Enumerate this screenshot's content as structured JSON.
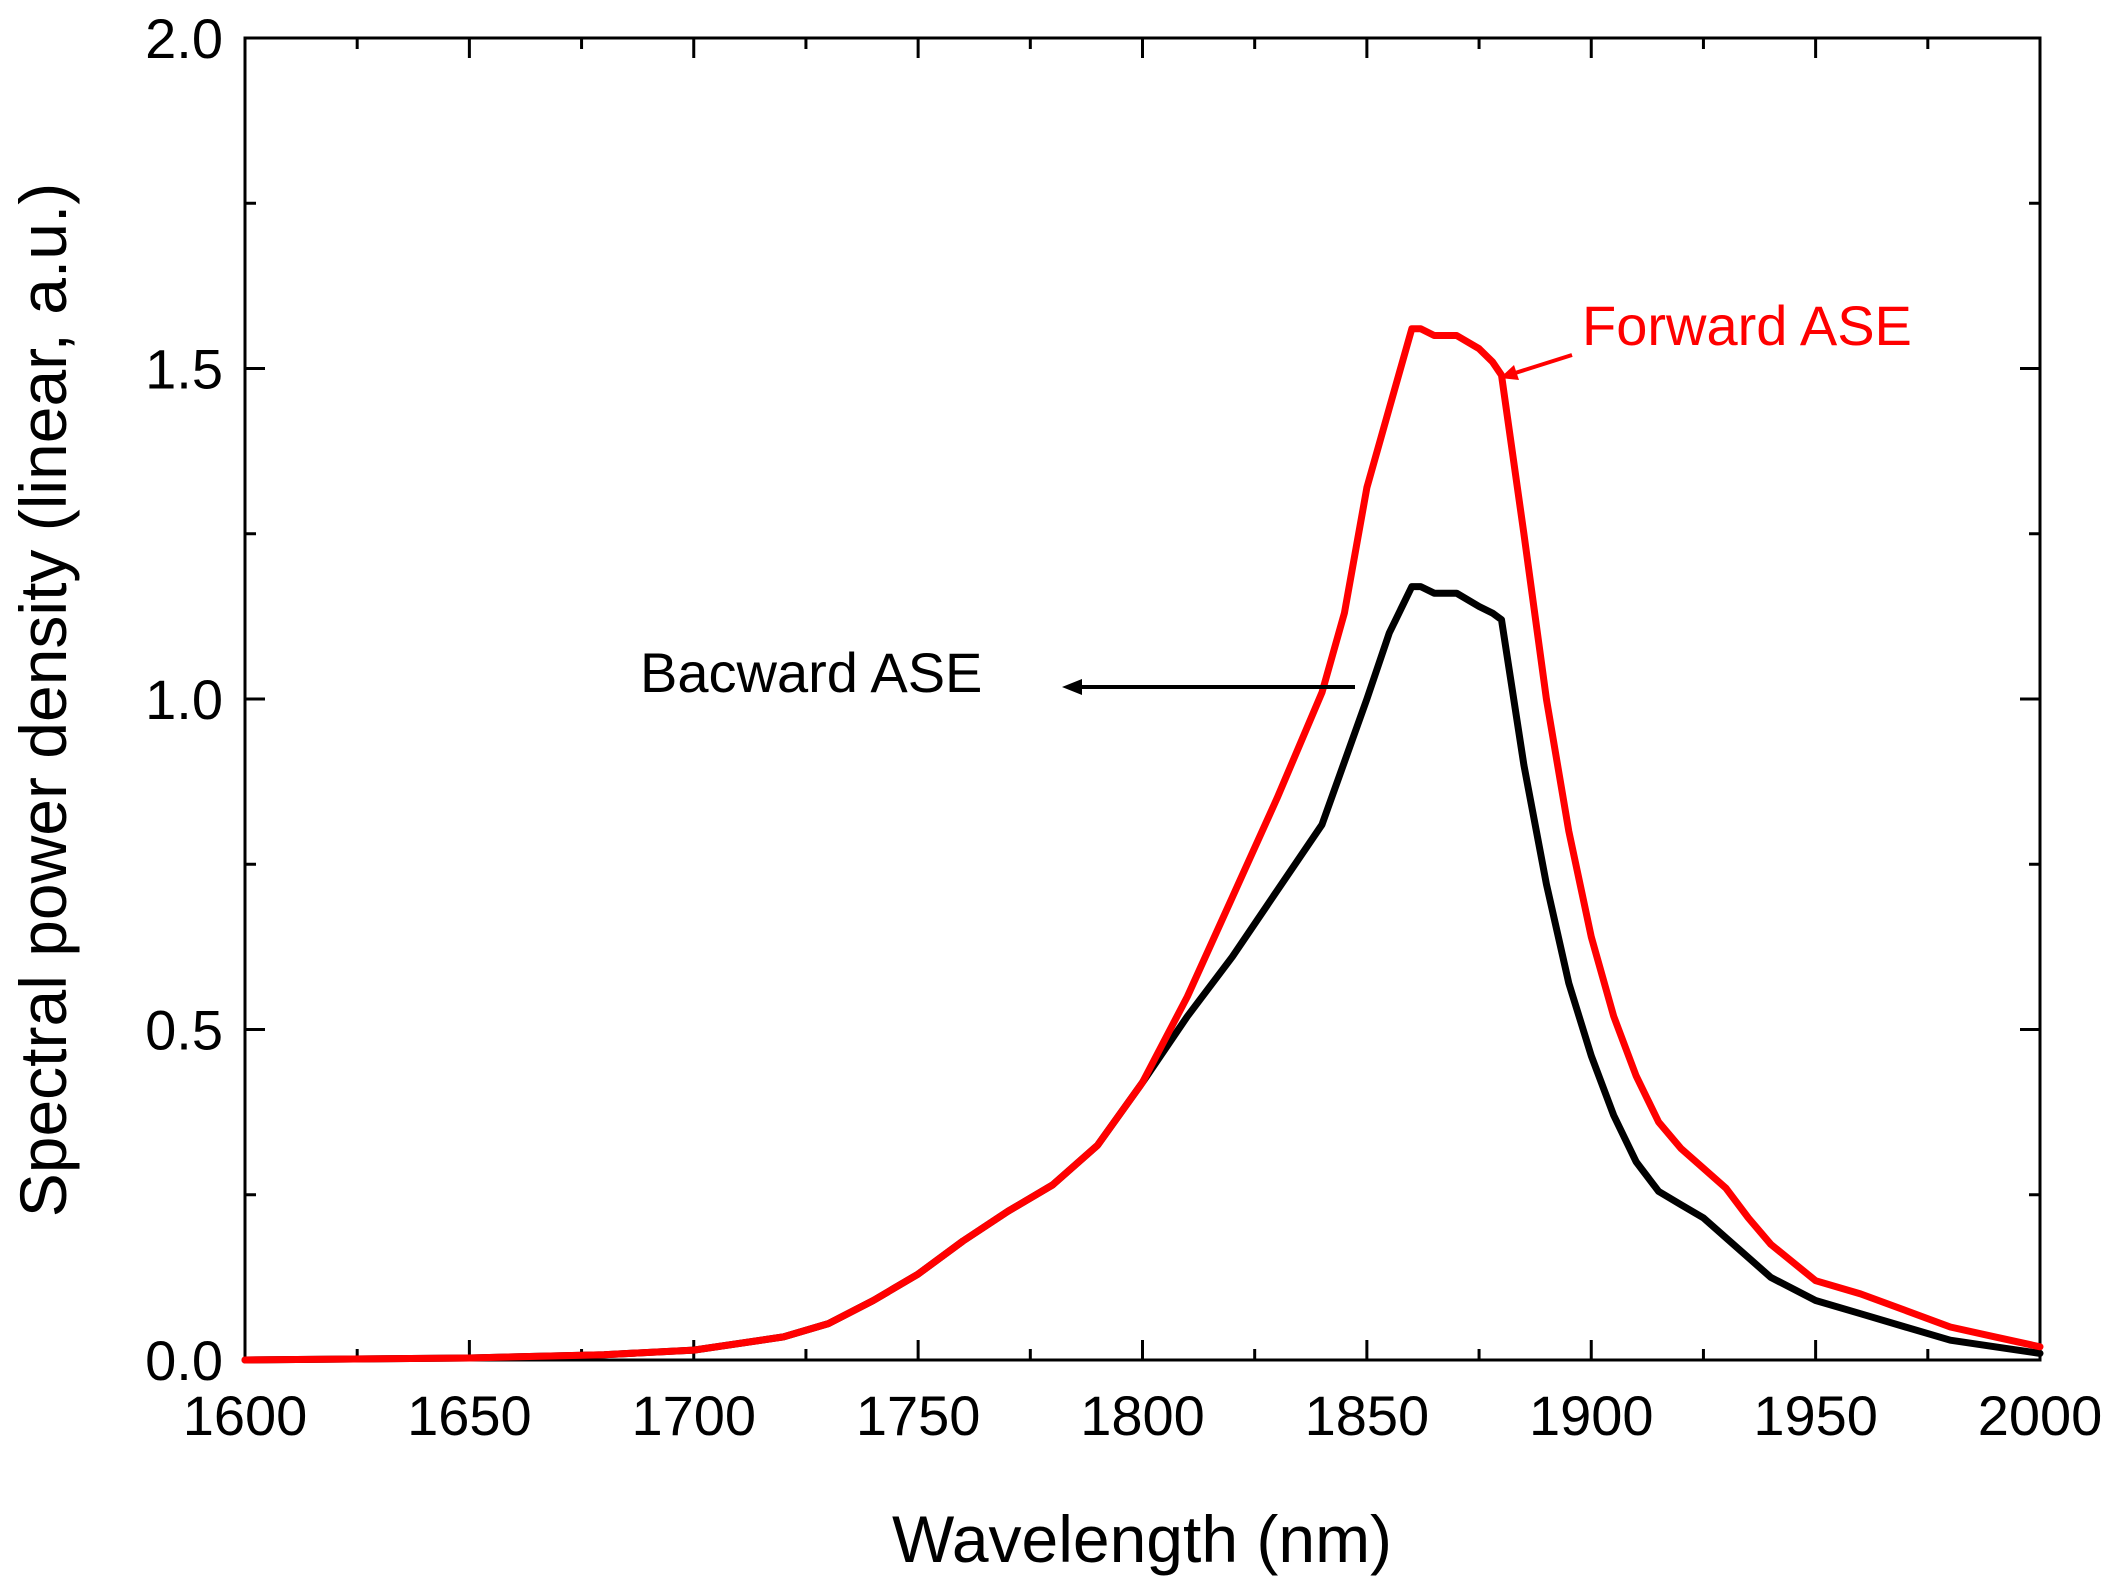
{
  "chart_data": {
    "type": "line",
    "title": "",
    "xlabel": "Wavelength (nm)",
    "ylabel": "Spectral power density (linear, a.u.)",
    "xlim": [
      1600,
      2000
    ],
    "ylim": [
      0,
      2.0
    ],
    "xticks": [
      1600,
      1650,
      1700,
      1750,
      1800,
      1850,
      1900,
      1950,
      2000
    ],
    "yticks": [
      0.0,
      0.5,
      1.0,
      1.5,
      2.0
    ],
    "xtick_labels": [
      "1600",
      "1650",
      "1700",
      "1750",
      "1800",
      "1850",
      "1900",
      "1950",
      "2000"
    ],
    "ytick_labels": [
      "0.0",
      "0.5",
      "1.0",
      "1.5",
      "2.0"
    ],
    "grid": false,
    "series": [
      {
        "name": "Backward ASE",
        "color": "#000000",
        "x": [
          1600,
          1650,
          1680,
          1700,
          1720,
          1730,
          1740,
          1750,
          1760,
          1770,
          1780,
          1790,
          1800,
          1810,
          1820,
          1830,
          1840,
          1850,
          1855,
          1860,
          1862,
          1865,
          1870,
          1875,
          1878,
          1880,
          1885,
          1890,
          1895,
          1900,
          1905,
          1910,
          1915,
          1920,
          1925,
          1930,
          1935,
          1940,
          1950,
          1960,
          1970,
          1980,
          1990,
          2000
        ],
        "y": [
          0.0,
          0.003,
          0.008,
          0.015,
          0.035,
          0.055,
          0.09,
          0.13,
          0.18,
          0.225,
          0.265,
          0.325,
          0.42,
          0.52,
          0.61,
          0.71,
          0.81,
          1.0,
          1.1,
          1.17,
          1.17,
          1.16,
          1.16,
          1.14,
          1.13,
          1.12,
          0.9,
          0.72,
          0.57,
          0.46,
          0.37,
          0.3,
          0.255,
          0.235,
          0.215,
          0.185,
          0.155,
          0.125,
          0.09,
          0.07,
          0.05,
          0.03,
          0.02,
          0.01
        ]
      },
      {
        "name": "Forward ASE",
        "color": "#ff0000",
        "x": [
          1600,
          1650,
          1680,
          1700,
          1720,
          1730,
          1740,
          1750,
          1760,
          1770,
          1780,
          1790,
          1800,
          1810,
          1820,
          1830,
          1840,
          1845,
          1850,
          1855,
          1860,
          1862,
          1865,
          1870,
          1875,
          1878,
          1880,
          1885,
          1890,
          1895,
          1900,
          1905,
          1910,
          1915,
          1920,
          1925,
          1930,
          1935,
          1940,
          1950,
          1960,
          1970,
          1980,
          1990,
          2000
        ],
        "y": [
          0.0,
          0.003,
          0.008,
          0.015,
          0.035,
          0.055,
          0.09,
          0.13,
          0.18,
          0.225,
          0.265,
          0.325,
          0.42,
          0.55,
          0.7,
          0.85,
          1.01,
          1.13,
          1.32,
          1.44,
          1.56,
          1.56,
          1.55,
          1.55,
          1.53,
          1.51,
          1.49,
          1.25,
          1.0,
          0.8,
          0.64,
          0.52,
          0.43,
          0.36,
          0.32,
          0.29,
          0.26,
          0.215,
          0.175,
          0.12,
          0.1,
          0.075,
          0.05,
          0.035,
          0.02
        ]
      }
    ],
    "annotations": [
      {
        "text": "Bacward ASE",
        "color": "#000000",
        "target_x": 1848,
        "target_y": 1.0,
        "arrow": "points left from curve to label"
      },
      {
        "text": "Forward ASE",
        "color": "#ff0000",
        "target_x": 1881,
        "target_y": 1.49,
        "arrow": "points from label toward curve"
      }
    ]
  }
}
